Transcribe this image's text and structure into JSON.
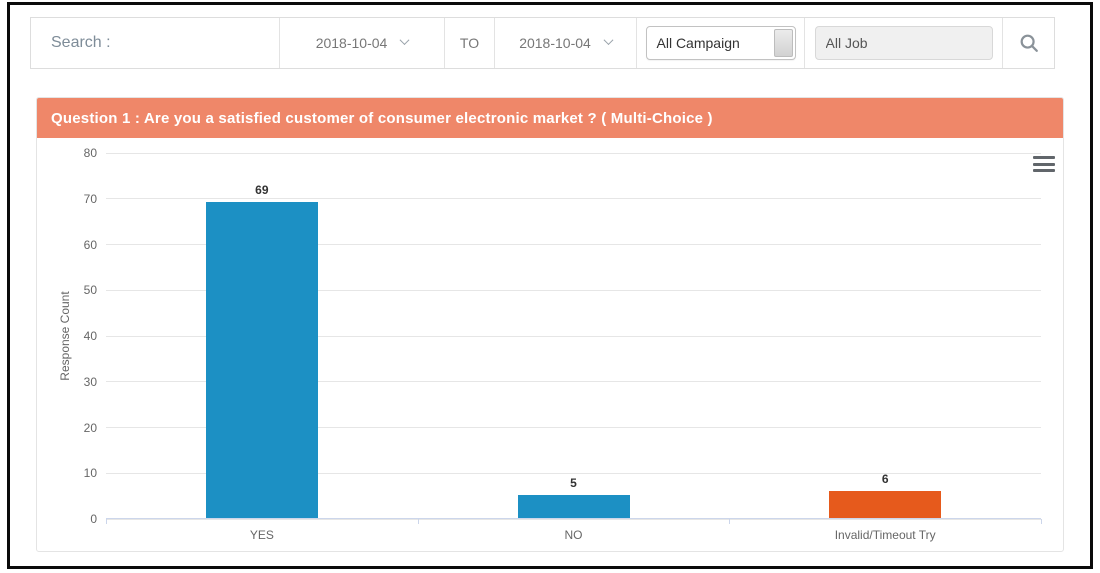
{
  "search_bar": {
    "label": "Search :",
    "date_from": "2018-10-04",
    "to_label": "TO",
    "date_to": "2018-10-04",
    "campaign_select_value": "All Campaign",
    "job_field_value": "All Job"
  },
  "question_header": {
    "title": "Question 1 : Are you a satisfied customer of consumer electronic market ? ( Multi-Choice )",
    "bg_color": "#ef8769"
  },
  "chart_data": {
    "type": "bar",
    "title": "",
    "xlabel": "",
    "ylabel": "Response Count",
    "categories": [
      "YES",
      "NO",
      "Invalid/Timeout Try"
    ],
    "values": [
      69,
      5,
      6
    ],
    "data_labels": [
      "69",
      "5",
      "6"
    ],
    "bar_colors": [
      "#1c90c4",
      "#1c90c4",
      "#e65a1c"
    ],
    "ylim": [
      0,
      80
    ],
    "yticks": [
      0,
      10,
      20,
      30,
      40,
      50,
      60,
      70,
      80
    ],
    "grid": true,
    "legend": false,
    "colors": {
      "grid_line": "#e6e6e6",
      "axis_line": "#ccd6eb",
      "tick_label": "#666666",
      "data_label": "#333333"
    }
  },
  "chart_menu": {
    "icon": "hamburger-menu"
  }
}
